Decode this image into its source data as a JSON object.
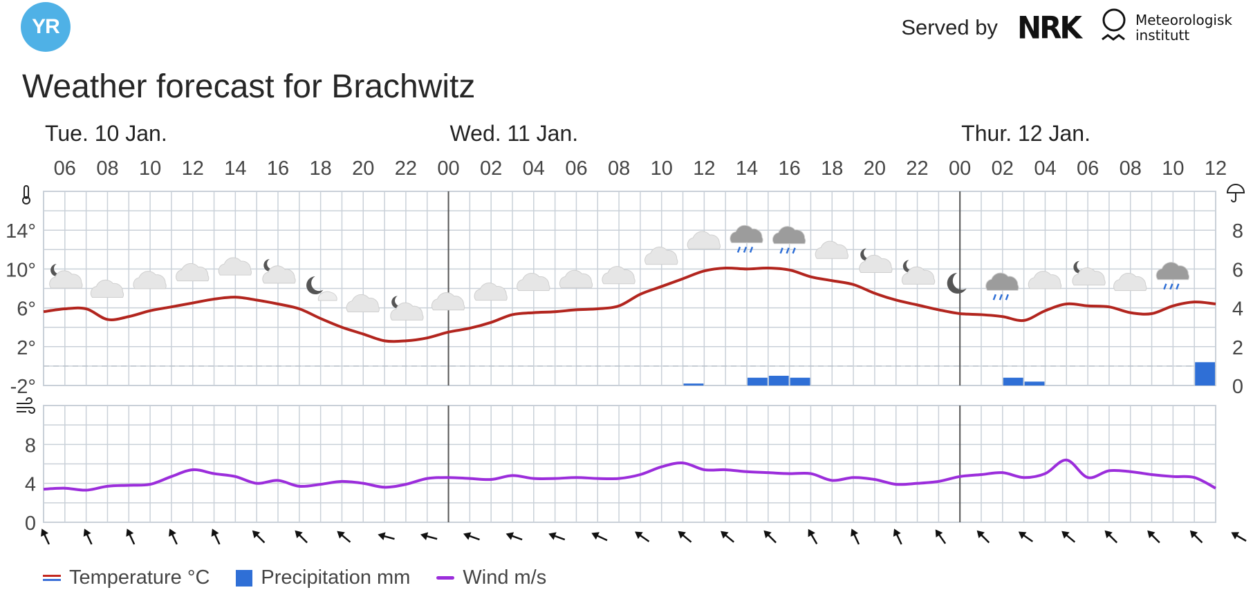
{
  "header": {
    "logo_text": "YR",
    "served_by": "Served by",
    "nrk_logo": "NRK",
    "met_line1": "Meteorologisk",
    "met_line2": "institutt",
    "title": "Weather forecast for Brachwitz"
  },
  "colors": {
    "temperature": "#b2251e",
    "precipitation": "#2f6fd6",
    "wind": "#9b2ddb",
    "grid": "#c9d0d8",
    "day_divider": "#555555"
  },
  "chart_data": {
    "type": "line",
    "days": [
      {
        "label": "Tue. 10 Jan.",
        "hour": 5
      },
      {
        "label": "Wed. 11 Jan.",
        "hour": 24
      },
      {
        "label": "Thur. 12 Jan.",
        "hour": 48
      }
    ],
    "day_dividers": [
      24,
      48
    ],
    "hour_range": [
      5,
      60
    ],
    "hour_ticks": [
      "06",
      "08",
      "10",
      "12",
      "14",
      "16",
      "18",
      "20",
      "22",
      "00",
      "02",
      "04",
      "06",
      "08",
      "10",
      "12",
      "14",
      "16",
      "18",
      "20",
      "22",
      "00",
      "02",
      "04",
      "06",
      "08",
      "10",
      "12"
    ],
    "temperature": {
      "unit": "°C",
      "y_range": [
        -2,
        18
      ],
      "ticks": [
        "14°",
        "10°",
        "6°",
        "2°",
        "-2°"
      ],
      "tick_values": [
        14,
        10,
        6,
        2,
        -2
      ],
      "values": [
        5.6,
        5.9,
        5.9,
        4.8,
        5.1,
        5.7,
        6.1,
        6.5,
        6.9,
        7.1,
        6.8,
        6.4,
        5.9,
        4.9,
        4.0,
        3.3,
        2.6,
        2.6,
        2.9,
        3.5,
        3.9,
        4.5,
        5.3,
        5.5,
        5.6,
        5.8,
        5.9,
        6.2,
        7.4,
        8.2,
        9.0,
        9.8,
        10.1,
        10.0,
        10.1,
        9.9,
        9.2,
        8.8,
        8.4,
        7.5,
        6.8,
        6.3,
        5.8,
        5.4,
        5.3,
        5.1,
        4.7,
        5.7,
        6.4,
        6.2,
        6.1,
        5.5,
        5.4,
        6.2,
        6.6,
        6.4
      ]
    },
    "precipitation": {
      "unit": "mm",
      "y_range": [
        0,
        10
      ],
      "ticks": [
        "8",
        "6",
        "4",
        "2",
        "0"
      ],
      "tick_values": [
        8,
        6,
        4,
        2,
        0
      ],
      "bars": [
        {
          "hour": 36,
          "value": 0.1
        },
        {
          "hour": 39,
          "value": 0.4
        },
        {
          "hour": 40,
          "value": 0.5
        },
        {
          "hour": 41,
          "value": 0.4
        },
        {
          "hour": 51,
          "value": 0.4
        },
        {
          "hour": 52,
          "value": 0.2
        },
        {
          "hour": 60,
          "value": 1.2
        }
      ]
    },
    "wind": {
      "unit": "m/s",
      "y_range": [
        0,
        12
      ],
      "ticks": [
        "8",
        "4",
        "0"
      ],
      "tick_values": [
        8,
        4,
        0
      ],
      "values": [
        3.4,
        3.5,
        3.3,
        3.7,
        3.8,
        3.9,
        4.7,
        5.4,
        5.0,
        4.7,
        4.0,
        4.3,
        3.7,
        3.9,
        4.2,
        4.0,
        3.6,
        3.9,
        4.5,
        4.6,
        4.5,
        4.4,
        4.8,
        4.5,
        4.5,
        4.6,
        4.5,
        4.5,
        4.9,
        5.7,
        6.1,
        5.4,
        5.4,
        5.2,
        5.1,
        5.0,
        5.0,
        4.3,
        4.6,
        4.4,
        3.9,
        4.0,
        4.2,
        4.7,
        4.9,
        5.1,
        4.6,
        5.0,
        6.4,
        4.6,
        5.3,
        5.2,
        4.9,
        4.7,
        4.6,
        3.5
      ],
      "direction_arrows": [
        65,
        65,
        65,
        65,
        65,
        45,
        45,
        40,
        15,
        15,
        20,
        20,
        20,
        25,
        35,
        40,
        40,
        45,
        60,
        65,
        65,
        55,
        45,
        35,
        40,
        45,
        45,
        45,
        30
      ]
    },
    "weather_symbols": [
      {
        "hour": 6,
        "icon": "partly-cloudy-night-icon"
      },
      {
        "hour": 8,
        "icon": "cloudy-icon"
      },
      {
        "hour": 10,
        "icon": "cloudy-icon"
      },
      {
        "hour": 12,
        "icon": "cloudy-icon"
      },
      {
        "hour": 14,
        "icon": "cloudy-icon"
      },
      {
        "hour": 16,
        "icon": "partly-cloudy-night-icon"
      },
      {
        "hour": 18,
        "icon": "fair-night-icon"
      },
      {
        "hour": 20,
        "icon": "cloudy-icon"
      },
      {
        "hour": 22,
        "icon": "partly-cloudy-night-icon"
      },
      {
        "hour": 24,
        "icon": "cloudy-icon"
      },
      {
        "hour": 26,
        "icon": "cloudy-icon"
      },
      {
        "hour": 28,
        "icon": "cloudy-icon"
      },
      {
        "hour": 30,
        "icon": "cloudy-icon"
      },
      {
        "hour": 32,
        "icon": "cloudy-icon"
      },
      {
        "hour": 34,
        "icon": "cloudy-icon"
      },
      {
        "hour": 36,
        "icon": "cloudy-icon"
      },
      {
        "hour": 38,
        "icon": "light-rain-icon"
      },
      {
        "hour": 40,
        "icon": "light-rain-icon"
      },
      {
        "hour": 42,
        "icon": "cloudy-icon"
      },
      {
        "hour": 44,
        "icon": "partly-cloudy-night-icon"
      },
      {
        "hour": 46,
        "icon": "partly-cloudy-night-icon"
      },
      {
        "hour": 48,
        "icon": "clear-night-icon"
      },
      {
        "hour": 50,
        "icon": "light-rain-icon"
      },
      {
        "hour": 52,
        "icon": "cloudy-icon"
      },
      {
        "hour": 54,
        "icon": "partly-cloudy-night-icon"
      },
      {
        "hour": 56,
        "icon": "cloudy-icon"
      },
      {
        "hour": 58,
        "icon": "light-rain-icon"
      }
    ],
    "legend": [
      {
        "key": "temperature",
        "label": "Temperature °C"
      },
      {
        "key": "precipitation",
        "label": "Precipitation mm"
      },
      {
        "key": "wind",
        "label": "Wind m/s"
      }
    ]
  }
}
